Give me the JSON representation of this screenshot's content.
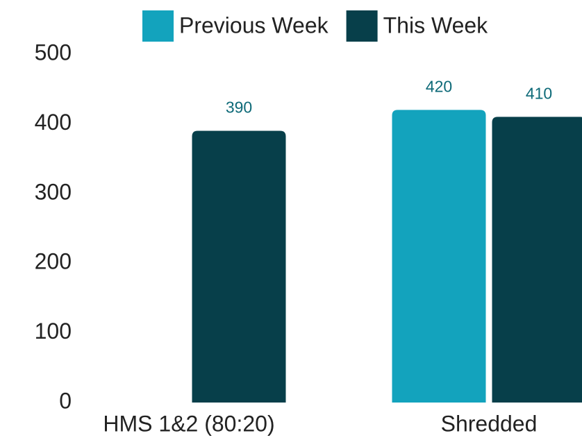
{
  "chart_data": {
    "type": "bar",
    "categories": [
      "HMS 1&2 (80:20)",
      "Shredded"
    ],
    "series": [
      {
        "name": "Previous Week",
        "color": "#13a3bd",
        "values": [
          null,
          420
        ]
      },
      {
        "name": "This Week",
        "color": "#073f4a",
        "values": [
          390,
          410
        ]
      }
    ],
    "ylim": [
      0,
      500
    ],
    "yticks": [
      0,
      100,
      200,
      300,
      400,
      500
    ],
    "grid": false,
    "legend": "top",
    "data_labels": true
  }
}
